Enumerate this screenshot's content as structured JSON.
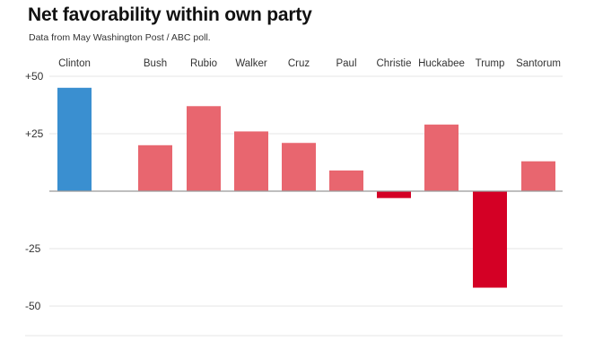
{
  "chart_data": {
    "type": "bar",
    "title": "Net favorability within own party",
    "subtitle": "Data from May Washington Post / ABC poll.",
    "xlabel": "",
    "ylabel": "",
    "categories": [
      "Clinton",
      "Bush",
      "Rubio",
      "Walker",
      "Cruz",
      "Paul",
      "Christie",
      "Huckabee",
      "Trump",
      "Santorum"
    ],
    "values": [
      45,
      20,
      37,
      26,
      21,
      9,
      -3,
      29,
      -42,
      13
    ],
    "parties": [
      "D",
      "R",
      "R",
      "R",
      "R",
      "R",
      "R",
      "R",
      "R",
      "R"
    ],
    "ylim": [
      -62,
      50
    ],
    "yticks": [
      50,
      25,
      -25,
      -50
    ],
    "ytick_labels": [
      "+50",
      "+25",
      "-25",
      "-50"
    ],
    "grid": true,
    "colors": {
      "democrat": "#3a8fd0",
      "republican_positive": "#e8666f",
      "republican_negative": "#d40025",
      "grid": "#e6e6e6",
      "zero_line": "#999999"
    }
  }
}
